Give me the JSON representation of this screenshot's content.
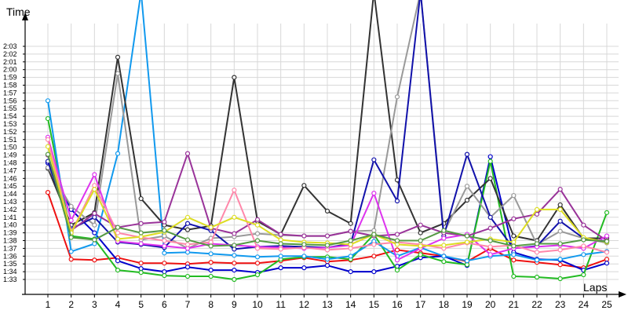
{
  "chart_data": {
    "type": "line",
    "ylabel": "Time",
    "xlabel": "Laps",
    "x": [
      1,
      2,
      3,
      4,
      5,
      6,
      7,
      8,
      9,
      10,
      11,
      12,
      13,
      14,
      15,
      16,
      17,
      18,
      19,
      20,
      21,
      22,
      23,
      24,
      25
    ],
    "ylim": [
      "1:32",
      "2:04"
    ],
    "y_ticks": [
      "1:33",
      "1:34",
      "1:35",
      "1:36",
      "1:37",
      "1:38",
      "1:39",
      "1:40",
      "1:41",
      "1:42",
      "1:43",
      "1:44",
      "1:45",
      "1:46",
      "1:47",
      "1:48",
      "1:49",
      "1:50",
      "1:51",
      "1:52",
      "1:53",
      "1:54",
      "1:55",
      "1:56",
      "1:57",
      "1:58",
      "1:59",
      "2:00",
      "2:01",
      "2:02",
      "2:03"
    ],
    "grid": true,
    "series": [
      {
        "color": "#ee1111",
        "values": [
          "1:44.2",
          "1:35.6",
          "1:35.5",
          "1:35.8",
          "1:35.1",
          "1:35.1",
          "1:35.0",
          "1:35.2",
          "1:35.1",
          "1:35.1",
          "1:35.4",
          "1:35.8",
          "1:35.3",
          "1:35.5",
          "1:36.0",
          "1:36.8",
          "1:36.4",
          "1:36.0",
          "1:35.3",
          "1:37.0",
          "1:35.5",
          "1:35.2",
          "1:34.9",
          "1:34.5",
          "1:35.6"
        ]
      },
      {
        "color": "#0000cc",
        "values": [
          "1:48.0",
          "1:42.0",
          "1:39.0",
          "1:35.4",
          "1:34.4",
          "1:34.0",
          "1:34.6",
          "1:34.2",
          "1:34.2",
          "1:33.9",
          "1:34.5",
          "1:34.5",
          "1:34.8",
          "1:34.0",
          "1:34.0",
          "1:34.7",
          "1:35.8",
          "1:36.0",
          "1:34.8",
          "1:48.8",
          "1:36.5",
          "1:35.6",
          "1:35.5",
          "1:34.2",
          "1:35.1"
        ]
      },
      {
        "color": "#22bb22",
        "values": [
          "1:53.7",
          "1:38.6",
          "1:38.2",
          "1:34.2",
          "1:33.9",
          "1:33.5",
          "1:33.4",
          "1:33.4",
          "1:33.0",
          "1:33.6",
          "1:35.6",
          "1:35.9",
          "1:35.9",
          "1:35.6",
          "1:38.8",
          "1:34.2",
          "1:36.2",
          "1:35.3",
          "1:34.9",
          "1:48.2",
          "1:33.4",
          "1:33.3",
          "1:33.1",
          "1:33.6",
          "1:41.6"
        ]
      },
      {
        "color": "#1199ee",
        "values": [
          "1:56.0",
          "1:36.6",
          "1:37.6",
          "1:49.2",
          "2:10.0",
          "1:36.4",
          "1:36.5",
          "1:36.3",
          "1:36.1",
          "1:35.9",
          "1:36.0",
          "1:36.0",
          "1:35.6",
          "1:36.0",
          "1:37.9",
          "1:36.0",
          "1:37.1",
          "1:36.0",
          "1:35.4",
          "1:36.0",
          "1:36.2",
          "1:35.5",
          "1:35.6",
          "1:36.2",
          "1:36.6"
        ]
      },
      {
        "color": "#333333",
        "values": [
          "1:47.3",
          "1:40.0",
          "1:41.6",
          "2:01.6",
          "1:43.4",
          "1:40.0",
          "1:39.4",
          "1:39.9",
          "1:59.0",
          "1:40.5",
          "1:38.8",
          "1:45.1",
          "1:41.8",
          "1:40.2",
          "2:10.0",
          "1:45.8",
          "1:39.0",
          "1:40.2",
          "1:43.2",
          "1:46.0",
          "1:38.6",
          "1:38.0",
          "1:42.6",
          "1:38.3",
          "1:38.3"
        ]
      },
      {
        "color": "#999999",
        "values": [
          "1:47.4",
          "1:42.4",
          "1:40.0",
          "1:59.5",
          "1:38.1",
          "1:38.6",
          "1:37.0",
          "1:38.3",
          "1:38.5",
          "1:38.9",
          "1:38.7",
          "1:38.6",
          "1:38.6",
          "1:39.2",
          "1:39.3",
          "1:56.5",
          "2:10.0",
          "1:39.0",
          "1:45.0",
          "1:41.0",
          "1:43.8",
          "1:37.5",
          "1:39.2",
          "1:38.3",
          "1:37.7"
        ]
      },
      {
        "color": "#1111aa",
        "values": [
          "1:48.2",
          "1:39.5",
          "1:41.0",
          "1:37.8",
          "1:37.5",
          "1:37.1",
          "1:40.2",
          "1:39.3",
          "1:36.9",
          "1:37.2",
          "1:37.3",
          "1:37.2",
          "1:37.1",
          "1:37.6",
          "1:48.4",
          "1:43.1",
          "2:10.0",
          "1:38.6",
          "1:49.1",
          "1:41.0",
          "1:37.0",
          "1:37.3",
          "1:40.5",
          "1:38.3",
          "1:37.9"
        ]
      },
      {
        "color": "#993399",
        "values": [
          "1:49.0",
          "1:39.3",
          "1:41.5",
          "1:39.7",
          "1:40.2",
          "1:40.4",
          "1:49.2",
          "1:39.6",
          "1:38.9",
          "1:40.7",
          "1:38.8",
          "1:38.6",
          "1:38.6",
          "1:39.2",
          "1:38.6",
          "1:38.8",
          "1:40.0",
          "1:39.0",
          "1:38.6",
          "1:39.6",
          "1:40.8",
          "1:41.4",
          "1:44.6",
          "1:40.0",
          "1:38.0"
        ]
      },
      {
        "color": "#dd33ee",
        "values": [
          "1:51.3",
          "1:40.6",
          "1:46.5",
          "1:37.9",
          "1:37.6",
          "1:37.3",
          "1:37.0",
          "1:37.6",
          "1:37.4",
          "1:37.2",
          "1:37.1",
          "1:37.0",
          "1:37.1",
          "1:37.4",
          "1:44.1",
          "1:35.5",
          "1:37.0",
          "1:38.3",
          "1:38.8",
          "1:36.2",
          "1:37.0",
          "1:37.2",
          "1:37.4",
          "1:37.0",
          "1:38.6"
        ]
      },
      {
        "color": "#ff88aa",
        "values": [
          "1:51.0",
          "1:39.0",
          "1:45.1",
          "1:39.0",
          "1:38.4",
          "1:38.0",
          "1:37.5",
          "1:37.8",
          "1:44.5",
          "1:37.0",
          "1:36.9",
          "1:37.1",
          "1:36.8",
          "1:37.0",
          "1:37.5",
          "1:37.8",
          "1:37.5",
          "1:37.0",
          "1:37.7",
          "1:37.2",
          "1:37.4",
          "1:36.5",
          "1:36.8",
          "1:37.3",
          "1:36.5"
        ]
      },
      {
        "color": "#dddd22",
        "values": [
          "1:50.1",
          "1:39.0",
          "1:44.6",
          "1:38.2",
          "1:38.5",
          "1:39.1",
          "1:41.0",
          "1:39.7",
          "1:41.0",
          "1:40.0",
          "1:38.1",
          "1:37.8",
          "1:37.7",
          "1:37.5",
          "1:38.8",
          "1:37.5",
          "1:37.3",
          "1:37.4",
          "1:37.8",
          "1:38.2",
          "1:37.8",
          "1:42.0",
          "1:42.0",
          "1:38.4",
          "1:37.8"
        ]
      },
      {
        "color": "#559944",
        "values": [
          "1:49.1",
          "1:38.4",
          "1:38.1",
          "1:39.7",
          "1:39.0",
          "1:39.3",
          "1:38.1",
          "1:37.3",
          "1:37.4",
          "1:38.0",
          "1:37.6",
          "1:37.5",
          "1:37.4",
          "1:38.0",
          "1:38.8",
          "1:38.0",
          "1:38.0",
          "1:39.3",
          "1:38.6",
          "1:38.0",
          "1:37.3",
          "1:37.6",
          "1:37.6",
          "1:38.1",
          "1:37.9"
        ]
      }
    ]
  }
}
